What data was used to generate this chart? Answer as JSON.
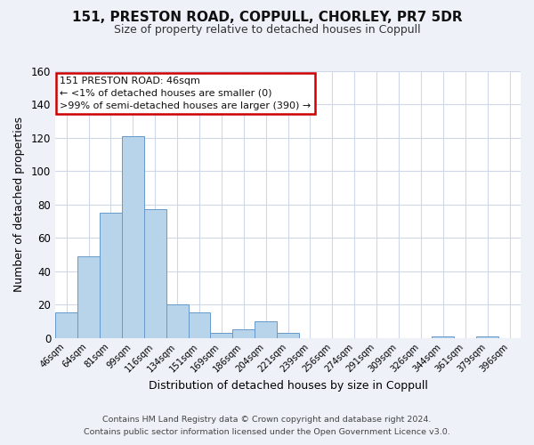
{
  "title": "151, PRESTON ROAD, COPPULL, CHORLEY, PR7 5DR",
  "subtitle": "Size of property relative to detached houses in Coppull",
  "xlabel": "Distribution of detached houses by size in Coppull",
  "ylabel": "Number of detached properties",
  "bar_color": "#b8d4ea",
  "bar_edge_color": "#6699cc",
  "categories": [
    "46sqm",
    "64sqm",
    "81sqm",
    "99sqm",
    "116sqm",
    "134sqm",
    "151sqm",
    "169sqm",
    "186sqm",
    "204sqm",
    "221sqm",
    "239sqm",
    "256sqm",
    "274sqm",
    "291sqm",
    "309sqm",
    "326sqm",
    "344sqm",
    "361sqm",
    "379sqm",
    "396sqm"
  ],
  "values": [
    15,
    49,
    75,
    121,
    77,
    20,
    15,
    3,
    5,
    10,
    3,
    0,
    0,
    0,
    0,
    0,
    0,
    1,
    0,
    1,
    0
  ],
  "ylim": [
    0,
    160
  ],
  "yticks": [
    0,
    20,
    40,
    60,
    80,
    100,
    120,
    140,
    160
  ],
  "annotation_title": "151 PRESTON ROAD: 46sqm",
  "annotation_line1": "← <1% of detached houses are smaller (0)",
  "annotation_line2": ">99% of semi-detached houses are larger (390) →",
  "footer1": "Contains HM Land Registry data © Crown copyright and database right 2024.",
  "footer2": "Contains public sector information licensed under the Open Government Licence v3.0.",
  "background_color": "#eef2f8",
  "plot_background_color": "#ffffff",
  "grid_color": "#d0d8e8"
}
